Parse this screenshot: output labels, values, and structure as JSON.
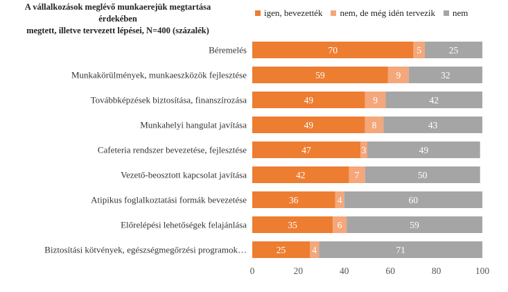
{
  "chart_data": {
    "type": "bar",
    "orientation": "horizontal",
    "stacked": true,
    "title": "A vállalkozások meglévő munkaerejük megtartása érdekében megtett, illetve tervezett lépései, N=400 (százalék)",
    "title_lines": [
      "A vállalkozások meglévő munkaerejük megtartása érdekében",
      "megtett, illetve tervezett lépései, N=400 (százalék)"
    ],
    "categories": [
      "Béremelés",
      "Munkakörülmények, munkaeszközök fejlesztése",
      "Továbbképzések biztosítása, finanszírozása",
      "Munkahelyi hangulat javítása",
      "Cafeteria rendszer bevezetése, fejlesztése",
      "Vezető-beosztott kapcsolat javítása",
      "Atipikus foglalkoztatási formák bevezetése",
      "Előrelépési lehetőségek felajánlása",
      "Biztosítási kötvények, egészségmegőrzési programok…"
    ],
    "series": [
      {
        "name": "igen, bevezették",
        "color": "#ED7D31",
        "values": [
          70,
          59,
          49,
          49,
          47,
          42,
          36,
          35,
          25
        ]
      },
      {
        "name": "nem, de még idén tervezik",
        "color": "#F4A77A",
        "values": [
          5,
          9,
          9,
          8,
          3,
          7,
          4,
          6,
          4
        ]
      },
      {
        "name": "nem",
        "color": "#A5A5A5",
        "values": [
          25,
          32,
          42,
          43,
          49,
          50,
          60,
          59,
          71
        ]
      }
    ],
    "xlim": [
      0,
      100
    ],
    "xticks": [
      0,
      20,
      40,
      60,
      80,
      100
    ],
    "xlabel": "",
    "ylabel": "",
    "legend_position": "top-right",
    "grid": false
  }
}
